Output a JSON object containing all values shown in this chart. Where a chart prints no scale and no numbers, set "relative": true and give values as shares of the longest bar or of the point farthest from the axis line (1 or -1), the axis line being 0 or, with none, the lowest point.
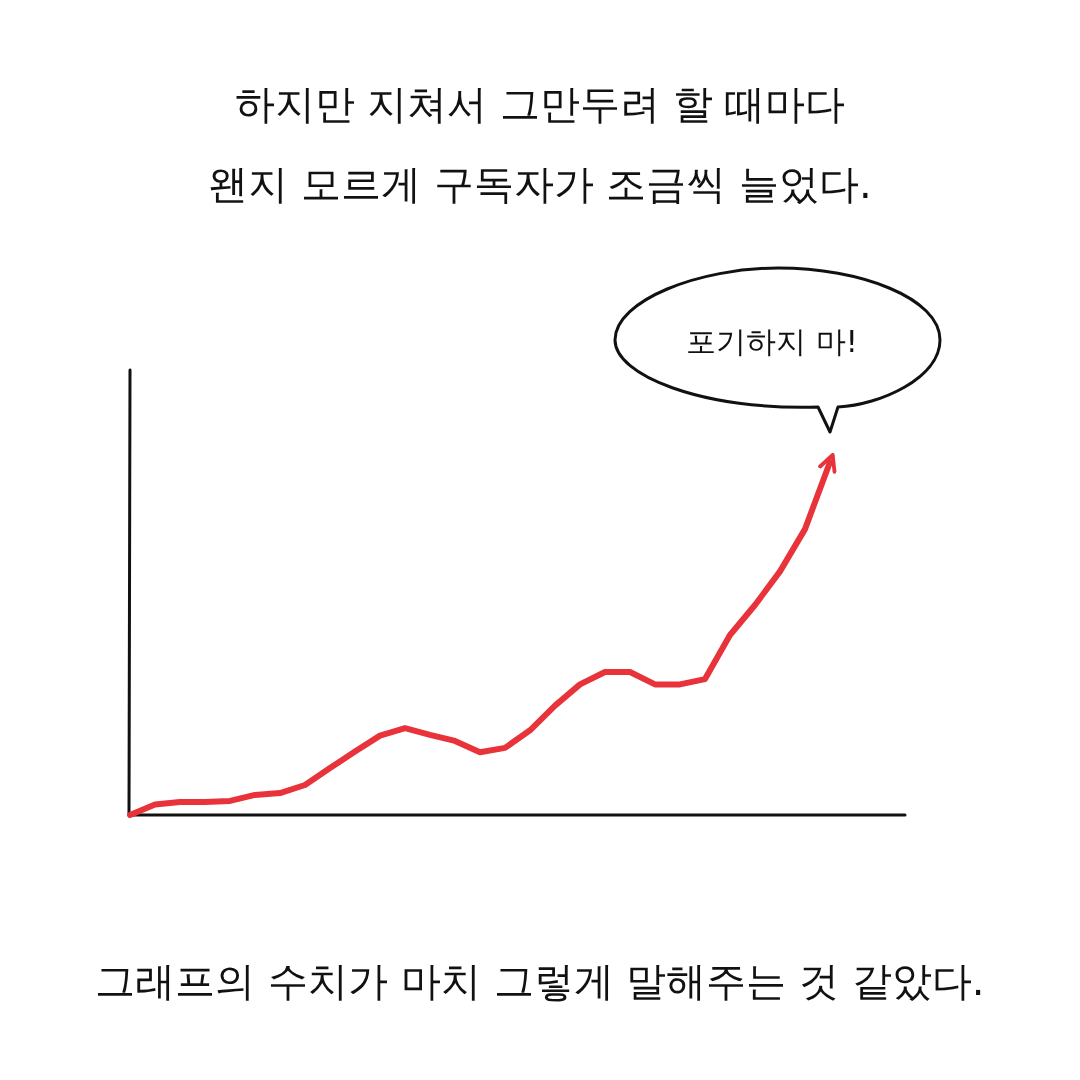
{
  "chart_data": {
    "type": "line",
    "relative": true,
    "title": "하지만 지쳐서 그만두려 할 때마다",
    "subtitle": "왠지 모르게 구독자가 조금씩 늘었다.",
    "annotations": [
      "포기하지 마!",
      "그래프의 수치가 마치 그렇게 말해주는 것 같았다."
    ],
    "categories": [
      null,
      null,
      null,
      null,
      null,
      null,
      null,
      null,
      null,
      null,
      null,
      null,
      null,
      null,
      null,
      null,
      null,
      null,
      null,
      null,
      null,
      null,
      null,
      null,
      null,
      null,
      null,
      null,
      null
    ],
    "series": [
      {
        "color": "#e8333a",
        "values": [
          0,
          0.03,
          0.037,
          0.037,
          0.04,
          0.057,
          0.062,
          0.085,
          0.133,
          0.18,
          0.225,
          0.246,
          0.227,
          0.21,
          0.178,
          0.19,
          0.24,
          0.31,
          0.37,
          0.405,
          0.405,
          0.37,
          0.37,
          0.385,
          0.51,
          0.595,
          0.69,
          0.81,
          1
        ]
      }
    ]
  }
}
